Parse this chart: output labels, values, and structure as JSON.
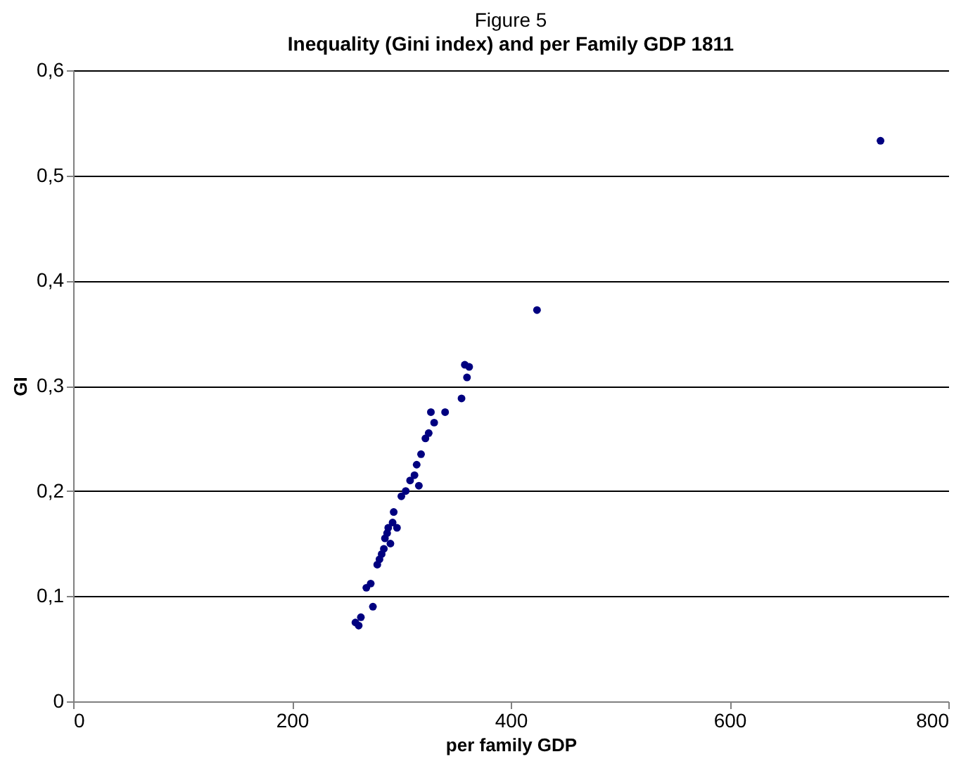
{
  "chart_data": {
    "type": "scatter",
    "title": "Figure 5",
    "subtitle": "Inequality (Gini index) and per Family GDP 1811",
    "xlabel": "per family GDP",
    "ylabel": "GI",
    "x": [
      258,
      261,
      263,
      268,
      272,
      274,
      278,
      280,
      282,
      284,
      285,
      287,
      288,
      290,
      292,
      293,
      296,
      300,
      304,
      308,
      312,
      314,
      316,
      318,
      322,
      325,
      327,
      330,
      340,
      355,
      358,
      360,
      362,
      424,
      738
    ],
    "series": [
      {
        "color": "#000080",
        "values": [
          0.075,
          0.072,
          0.08,
          0.108,
          0.112,
          0.09,
          0.13,
          0.135,
          0.14,
          0.145,
          0.155,
          0.16,
          0.165,
          0.15,
          0.17,
          0.18,
          0.165,
          0.195,
          0.2,
          0.21,
          0.215,
          0.225,
          0.205,
          0.235,
          0.25,
          0.255,
          0.275,
          0.265,
          0.275,
          0.288,
          0.32,
          0.308,
          0.318,
          0.372,
          0.533
        ]
      }
    ],
    "xlim": [
      0,
      800
    ],
    "xticks": [
      0,
      200,
      400,
      600,
      800
    ],
    "ylim": [
      0,
      0.6
    ],
    "yticks": [
      0,
      {
        "value": 0.1,
        "label": "0,1"
      },
      {
        "value": 0.2,
        "label": "0,2"
      },
      {
        "value": 0.3,
        "label": "0,3"
      },
      {
        "value": 0.4,
        "label": "0,4"
      },
      {
        "value": 0.5,
        "label": "0,5"
      },
      {
        "value": 0.6,
        "label": "0,6"
      }
    ],
    "grid": "y",
    "marker": "circle",
    "legend": false
  }
}
